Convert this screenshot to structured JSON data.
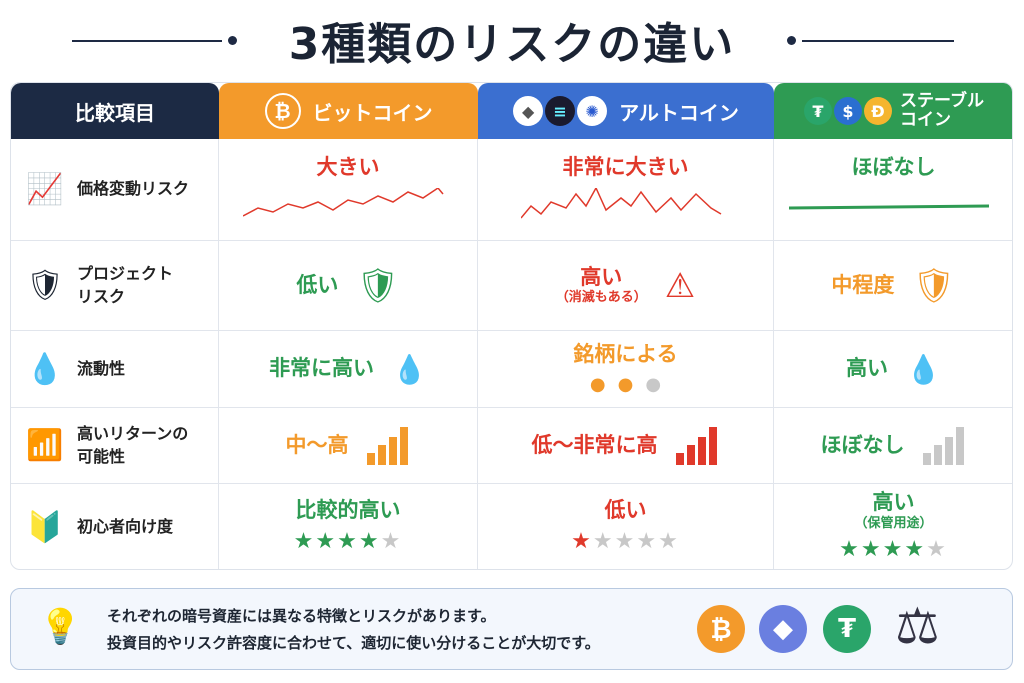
{
  "title": "3種類のリスクの違い",
  "header": {
    "category": "比較項目",
    "bitcoin": "ビットコイン",
    "altcoin": "アルトコイン",
    "stablecoin": "ステーブル\nコイン"
  },
  "colors": {
    "navy": "#1c2a44",
    "orange": "#f39a2b",
    "blue": "#3b6fd0",
    "green": "#2e9b53",
    "red": "#e0392b",
    "gray": "#c8c8c8"
  },
  "rows": [
    {
      "label": "価格変動リスク",
      "icon": "chart-up-icon",
      "bitcoin": {
        "text": "大きい",
        "color": "red"
      },
      "altcoin": {
        "text": "非常に大きい",
        "color": "red"
      },
      "stablecoin": {
        "text": "ほぼなし",
        "color": "green"
      }
    },
    {
      "label": "プロジェクト\nリスク",
      "icon": "shield-check-icon",
      "bitcoin": {
        "text": "低い",
        "color": "green",
        "icon": "green-shield-check-icon"
      },
      "altcoin": {
        "text": "高い",
        "sub": "（消滅もある）",
        "color": "red",
        "icon": "warning-triangle-icon"
      },
      "stablecoin": {
        "text": "中程度",
        "color": "orange",
        "icon": "orange-shield-check-icon"
      }
    },
    {
      "label": "流動性",
      "icon": "water-drop-icon",
      "bitcoin": {
        "text": "非常に高い",
        "color": "green",
        "drops": 1
      },
      "altcoin": {
        "text": "銘柄による",
        "color": "orange",
        "drops_filled": 2,
        "drops_total": 3
      },
      "stablecoin": {
        "text": "高い",
        "color": "green",
        "drops": 1
      }
    },
    {
      "label": "高いリターンの\n可能性",
      "icon": "growth-bars-icon",
      "bitcoin": {
        "text": "中〜高",
        "color": "orange",
        "level": 4
      },
      "altcoin": {
        "text": "低〜非常に高",
        "color": "red",
        "level": 4
      },
      "stablecoin": {
        "text": "ほぼなし",
        "color": "green",
        "level": 4
      }
    },
    {
      "label": "初心者向け度",
      "icon": "beginner-mark-icon",
      "bitcoin": {
        "text": "比較的高い",
        "color": "green",
        "stars": 4
      },
      "altcoin": {
        "text": "低い",
        "color": "red",
        "stars": 1
      },
      "stablecoin": {
        "text": "高い",
        "sub": "（保管用途）",
        "color": "green",
        "stars": 4
      }
    }
  ],
  "footer": {
    "line1": "それぞれの暗号資産には異なる特徴とリスクがあります。",
    "line2": "投資目的やリスク許容度に合わせて、適切に使い分けることが大切です。"
  }
}
